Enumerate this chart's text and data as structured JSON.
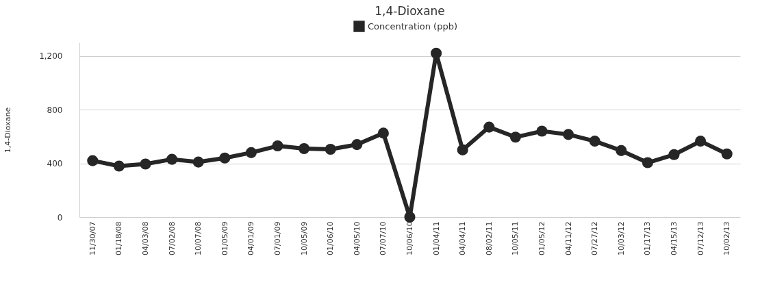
{
  "chart_data": {
    "type": "line",
    "title": "1,4-Dioxane",
    "ylabel": "1,4-Dioxane",
    "categories": [
      "11/30/07",
      "01/18/08",
      "04/03/08",
      "07/02/08",
      "10/07/08",
      "01/05/09",
      "04/01/09",
      "07/01/09",
      "10/05/09",
      "01/06/10",
      "04/05/10",
      "07/07/10",
      "10/06/10",
      "01/04/11",
      "04/04/11",
      "08/02/11",
      "10/05/11",
      "01/05/12",
      "04/11/12",
      "07/27/12",
      "10/03/12",
      "01/17/13",
      "04/15/13",
      "07/12/13",
      "10/02/13"
    ],
    "series": [
      {
        "name": "Concentration (ppb)",
        "color": "#262626",
        "values": [
          420,
          380,
          395,
          430,
          410,
          440,
          480,
          530,
          510,
          505,
          540,
          625,
          0,
          1220,
          500,
          670,
          595,
          640,
          615,
          565,
          495,
          405,
          465,
          565,
          470
        ]
      }
    ],
    "ylim": [
      0,
      1300
    ],
    "yticks": [
      0,
      400,
      800,
      {
        "value": 1200,
        "label": "1,200"
      }
    ],
    "grid": "y",
    "legend": "top",
    "marker": "circle",
    "line_style": "solid"
  }
}
